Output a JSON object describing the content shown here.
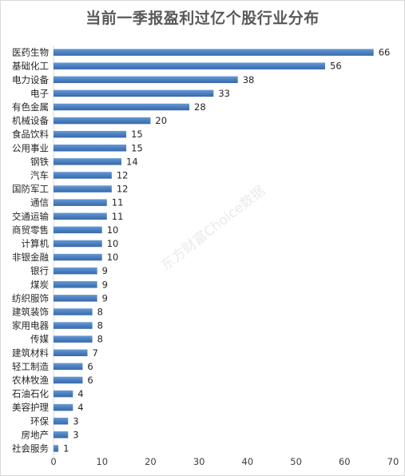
{
  "chart_data": {
    "type": "bar",
    "orientation": "horizontal",
    "title": "当前一季报盈利过亿个股行业分布",
    "categories": [
      "医药生物",
      "基础化工",
      "电力设备",
      "电子",
      "有色金属",
      "机械设备",
      "食品饮料",
      "公用事业",
      "钢铁",
      "汽车",
      "国防军工",
      "通信",
      "交通运输",
      "商贸零售",
      "计算机",
      "非银金融",
      "银行",
      "煤炭",
      "纺织服饰",
      "建筑装饰",
      "家用电器",
      "传媒",
      "建筑材料",
      "轻工制造",
      "农林牧渔",
      "石油石化",
      "美容护理",
      "环保",
      "房地产",
      "社会服务"
    ],
    "values": [
      66,
      56,
      38,
      33,
      28,
      20,
      15,
      15,
      14,
      12,
      12,
      11,
      11,
      10,
      10,
      10,
      9,
      9,
      9,
      8,
      8,
      8,
      7,
      6,
      6,
      4,
      4,
      3,
      3,
      1
    ],
    "xlim": [
      0,
      70
    ],
    "xticks": [
      0,
      10,
      20,
      30,
      40,
      50,
      60,
      70
    ],
    "bar_color": "#4a7fc1",
    "grid": false,
    "legend": "none",
    "watermark": "东方财富Choice数据"
  }
}
